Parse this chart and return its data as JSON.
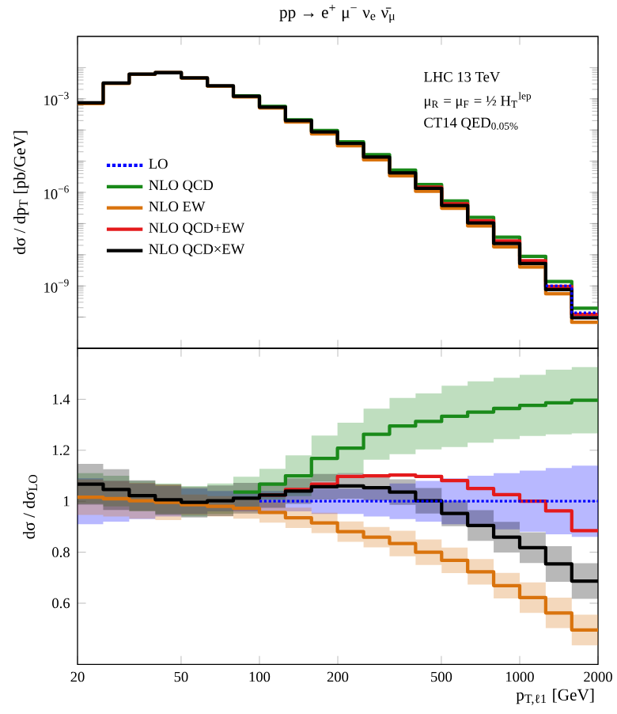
{
  "chart_data": [
    {
      "type": "step",
      "title": "pp → e$^{+}$ μ$^{−}$ ν$_{e}$ ν̄$_{μ}$",
      "ylabel": "dσ / dp$_{T}$ [pb/GeV]",
      "log": "xy",
      "legend": "left",
      "tick_labels": "y",
      "annotations": [
        "LHC 13 TeV",
        "μ$_{R}$ = μ$_{F}$ = ½ H$_{T}$$^{lep}$",
        "CT14 QED$_{0.05%}$"
      ],
      "x": [
        20,
        25.1,
        31.6,
        39.8,
        50.1,
        63.1,
        79.4,
        100,
        125.9,
        158.5,
        199.5,
        251.2,
        316.2,
        398.1,
        501.2,
        631,
        794.3,
        1000,
        1258.9,
        1584.9,
        2000
      ],
      "xlim": [
        20,
        2000
      ],
      "xticks": [
        20,
        50,
        100,
        200,
        500,
        1000,
        2000
      ],
      "ylim": [
        1e-11,
        0.1
      ],
      "yticks": [
        {
          "value": 1e-10,
          "label": null
        },
        {
          "value": 1e-09,
          "label": "10$^{−9}$"
        },
        {
          "value": 1e-08,
          "label": null
        },
        {
          "value": 1e-07,
          "label": null
        },
        {
          "value": 1e-06,
          "label": "10$^{−6}$"
        },
        {
          "value": 1e-05,
          "label": null
        },
        {
          "value": 0.0001,
          "label": null
        },
        {
          "value": 0.001,
          "label": "10$^{−3}$"
        },
        {
          "value": 0.01,
          "label": null
        }
      ],
      "series": [
        {
          "name": "LO",
          "color": "#0000ff",
          "line_style": "dotted",
          "values": [
            null,
            null,
            null,
            null,
            null,
            null,
            null,
            null,
            null,
            null,
            null,
            null,
            null,
            null,
            null,
            null,
            null,
            null,
            1e-09,
            1.38e-10,
            1.38e-10
          ]
        },
        {
          "name": "NLO QCD",
          "color": "#1a8a1a",
          "values": [
            null,
            null,
            null,
            null,
            null,
            null,
            0.00124,
            0.00057,
            0.00021,
            9.6e-05,
            4.2e-05,
            1.62e-05,
            5.2e-06,
            1.77e-06,
            5.3e-07,
            1.57e-07,
            3.65e-08,
            8.8e-09,
            1.39e-09,
            1.93e-10,
            1.93e-10
          ]
        },
        {
          "name": "NLO EW",
          "color": "#d9730d",
          "values": [
            0.0007,
            0.00309,
            0.0061,
            0.0069,
            0.0046,
            0.00255,
            0.00116,
            0.00051,
            0.00018,
            7.5e-05,
            3.1e-05,
            1.1e-05,
            3.4e-06,
            1.08e-06,
            3.1e-07,
            8.4e-08,
            1.79e-08,
            4e-09,
            5.6e-10,
            6.8e-11,
            6.8e-11
          ]
        },
        {
          "name": "NLO QCD+EW",
          "color": "#e41a1c",
          "values": [
            null,
            null,
            null,
            null,
            null,
            null,
            null,
            null,
            null,
            null,
            null,
            null,
            null,
            1.48e-06,
            4.3e-07,
            1.22e-07,
            2.75e-08,
            6.4e-09,
            9.6e-10,
            1.22e-10,
            1.22e-10
          ]
        },
        {
          "name": "NLO QCD×EW",
          "color": "#000000",
          "values": [
            0.00074,
            0.0032,
            0.0062,
            0.0069,
            0.0047,
            0.0026,
            0.0012,
            0.00054,
            0.0002,
            8.7e-05,
            3.7e-05,
            1.35e-05,
            4.2e-06,
            1.35e-06,
            3.8e-07,
            1.05e-07,
            2.3e-08,
            5.2e-09,
            7.6e-10,
            9.5e-11,
            9.5e-11
          ]
        }
      ]
    },
    {
      "type": "step",
      "ylabel": "dσ / dσ$_{LO}$",
      "xlabel": "p$_{T,ℓ1}$ [GeV]",
      "log": "x",
      "x": [
        20,
        25.1,
        31.6,
        39.8,
        50.1,
        63.1,
        79.4,
        100,
        125.9,
        158.5,
        199.5,
        251.2,
        316.2,
        398.1,
        501.2,
        631,
        794.3,
        1000,
        1258.9,
        1584.9,
        2000
      ],
      "xlim": [
        20,
        2000
      ],
      "xticks": [
        20,
        50,
        100,
        200,
        500,
        1000,
        2000
      ],
      "ylim": [
        0.36,
        1.6
      ],
      "yticks": [
        0.6,
        0.8,
        1,
        1.2,
        1.4
      ],
      "series": [
        {
          "color": "#0000ff",
          "line_style": "dotted",
          "values": [
            null,
            null,
            null,
            null,
            null,
            null,
            null,
            1,
            1,
            1,
            1,
            1,
            1,
            1,
            1,
            1,
            1,
            1,
            1,
            1,
            1
          ],
          "lower": [
            0.91,
            0.92,
            0.93,
            0.94,
            0.95,
            0.96,
            0.96,
            0.96,
            0.96,
            0.95,
            0.95,
            0.94,
            0.93,
            0.92,
            0.91,
            0.9,
            0.89,
            0.88,
            0.87,
            0.86,
            0.86
          ],
          "upper": [
            1.09,
            1.08,
            1.07,
            1.06,
            1.05,
            1.04,
            1.04,
            1.04,
            1.04,
            1.05,
            1.05,
            1.06,
            1.07,
            1.08,
            1.09,
            1.1,
            1.11,
            1.12,
            1.13,
            1.14,
            1.14
          ]
        },
        {
          "color": "#1a8a1a",
          "values": [
            null,
            null,
            null,
            null,
            null,
            null,
            1.036,
            1.067,
            1.1,
            1.168,
            1.208,
            1.263,
            1.295,
            1.313,
            1.333,
            1.35,
            1.364,
            1.376,
            1.386,
            1.396,
            1.396
          ],
          "lower": [
            0.99,
            0.98,
            0.96,
            0.95,
            0.94,
            0.95,
            0.976,
            1.007,
            1.02,
            1.078,
            1.108,
            1.163,
            1.185,
            1.203,
            1.213,
            1.23,
            1.244,
            1.256,
            1.262,
            1.266,
            1.266
          ],
          "upper": [
            1.11,
            1.1,
            1.08,
            1.07,
            1.06,
            1.07,
            1.096,
            1.127,
            1.18,
            1.258,
            1.308,
            1.363,
            1.405,
            1.423,
            1.453,
            1.47,
            1.484,
            1.496,
            1.516,
            1.526,
            1.526
          ]
        },
        {
          "color": "#d9730d",
          "values": [
            1.016,
            1.01,
            1.002,
            0.996,
            0.986,
            0.98,
            0.972,
            0.956,
            0.935,
            0.915,
            0.881,
            0.859,
            0.834,
            0.8,
            0.768,
            0.723,
            0.669,
            0.622,
            0.562,
            0.495,
            0.495
          ],
          "lower": [
            0.946,
            0.94,
            0.932,
            0.926,
            0.946,
            0.94,
            0.932,
            0.916,
            0.895,
            0.875,
            0.841,
            0.819,
            0.784,
            0.75,
            0.718,
            0.673,
            0.619,
            0.562,
            0.502,
            0.435,
            0.435
          ],
          "upper": [
            1.086,
            1.08,
            1.072,
            1.066,
            1.026,
            1.02,
            1.012,
            0.996,
            0.975,
            0.955,
            0.921,
            0.899,
            0.884,
            0.85,
            0.818,
            0.773,
            0.719,
            0.682,
            0.622,
            0.555,
            0.555
          ]
        },
        {
          "color": "#e41a1c",
          "values": [
            null,
            null,
            null,
            null,
            null,
            null,
            null,
            1.024,
            1.046,
            1.067,
            1.097,
            1.1,
            1.103,
            1.097,
            1.081,
            1.05,
            1.026,
            1.0,
            0.962,
            0.885,
            0.885
          ]
        },
        {
          "color": "#000000",
          "values": [
            1.067,
            1.046,
            1.022,
            1.006,
            0.996,
            1.002,
            1.012,
            1.024,
            1.04,
            1.057,
            1.06,
            1.053,
            1.036,
            1.002,
            0.952,
            0.905,
            0.859,
            0.818,
            0.754,
            0.687,
            0.687
          ],
          "lower": [
            0.987,
            0.966,
            0.962,
            0.946,
            0.936,
            0.942,
            0.952,
            0.974,
            0.99,
            1.007,
            1.01,
            1.003,
            0.986,
            0.952,
            0.902,
            0.845,
            0.799,
            0.758,
            0.684,
            0.617,
            0.617
          ],
          "upper": [
            1.147,
            1.126,
            1.082,
            1.066,
            1.056,
            1.062,
            1.072,
            1.074,
            1.09,
            1.107,
            1.11,
            1.103,
            1.086,
            1.052,
            1.002,
            0.965,
            0.919,
            0.878,
            0.824,
            0.757,
            0.757
          ]
        }
      ]
    }
  ]
}
